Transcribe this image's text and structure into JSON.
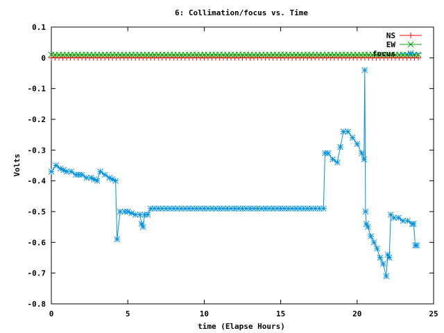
{
  "chart_data": {
    "type": "line",
    "title": "6: Collimation/focus vs. Time",
    "xlabel": "time (Elapse Hours)",
    "ylabel": "Volts",
    "xlim": [
      0,
      25
    ],
    "ylim": [
      -0.8,
      0.1
    ],
    "xticks": [
      0,
      5,
      10,
      15,
      20,
      25
    ],
    "yticks": [
      0.1,
      0,
      -0.1,
      -0.2,
      -0.3,
      -0.4,
      -0.5,
      -0.6,
      -0.7,
      -0.8
    ],
    "xtick_labels": [
      "0",
      "5",
      "10",
      "15",
      "20",
      "25"
    ],
    "ytick_labels": [
      "0.1",
      "0",
      "-0.1",
      "-0.2",
      "-0.3",
      "-0.4",
      "-0.5",
      "-0.6",
      "-0.7",
      "-0.8"
    ],
    "grid": false,
    "legend": "top-right",
    "series": [
      {
        "name": "NS",
        "color": "#ff0000",
        "marker": "plus",
        "x": [
          0,
          24
        ],
        "y": [
          0.0,
          0.0
        ]
      },
      {
        "name": "EW",
        "color": "#00a000",
        "marker": "cross",
        "x": [
          0,
          24
        ],
        "y": [
          0.01,
          0.01
        ]
      },
      {
        "name": "focus",
        "color": "#0090e0",
        "marker": "star",
        "x": [
          0.0,
          0.3,
          0.6,
          1.0,
          1.3,
          1.6,
          2.0,
          2.3,
          2.6,
          3.0,
          3.2,
          3.5,
          3.8,
          4.2,
          4.3,
          4.5,
          4.8,
          5.0,
          5.5,
          5.8,
          5.9,
          6.0,
          6.1,
          6.3,
          6.5,
          7.0,
          8.0,
          9.0,
          10.0,
          11.0,
          12.0,
          13.0,
          14.0,
          15.0,
          16.0,
          17.0,
          17.8,
          17.9,
          18.1,
          18.4,
          18.7,
          18.9,
          19.1,
          19.4,
          19.7,
          20.0,
          20.3,
          20.45,
          20.5,
          20.55,
          20.6,
          20.7,
          20.9,
          21.1,
          21.3,
          21.5,
          21.7,
          21.9,
          22.0,
          22.1,
          22.2,
          22.4,
          22.7,
          23.0,
          23.3,
          23.6,
          23.7,
          23.8,
          23.9
        ],
        "y": [
          -0.37,
          -0.35,
          -0.36,
          -0.37,
          -0.37,
          -0.38,
          -0.38,
          -0.39,
          -0.39,
          -0.4,
          -0.37,
          -0.38,
          -0.39,
          -0.4,
          -0.59,
          -0.5,
          -0.5,
          -0.5,
          -0.51,
          -0.51,
          -0.54,
          -0.55,
          -0.51,
          -0.51,
          -0.49,
          -0.49,
          -0.49,
          -0.49,
          -0.49,
          -0.49,
          -0.49,
          -0.49,
          -0.49,
          -0.49,
          -0.49,
          -0.49,
          -0.49,
          -0.31,
          -0.31,
          -0.33,
          -0.34,
          -0.29,
          -0.24,
          -0.24,
          -0.26,
          -0.28,
          -0.31,
          -0.33,
          -0.04,
          -0.5,
          -0.54,
          -0.55,
          -0.58,
          -0.6,
          -0.62,
          -0.65,
          -0.67,
          -0.71,
          -0.64,
          -0.65,
          -0.51,
          -0.52,
          -0.52,
          -0.53,
          -0.53,
          -0.54,
          -0.54,
          -0.61,
          -0.61
        ]
      }
    ]
  }
}
